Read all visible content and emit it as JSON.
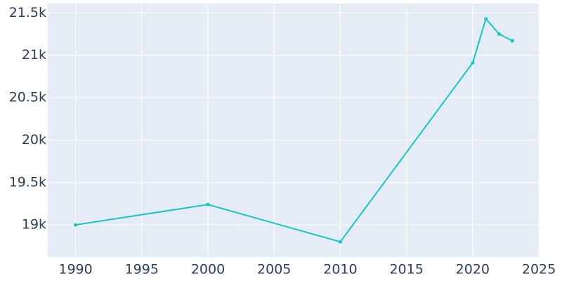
{
  "chart_data": {
    "type": "line",
    "x": [
      1990,
      2000,
      2010,
      2020,
      2021,
      2022,
      2023
    ],
    "series": [
      {
        "color": "#13c7c9",
        "values": [
          19000,
          19240,
          18800,
          20910,
          21430,
          21250,
          21170
        ]
      }
    ],
    "xlim": [
      1987.9,
      2025.05
    ],
    "xticks": [
      1990,
      1995,
      2000,
      2005,
      2010,
      2015,
      2020,
      2025
    ],
    "ylim": [
      18620,
      21610
    ],
    "yticks": [
      {
        "value": 19000,
        "label": "19k"
      },
      {
        "value": 19500,
        "label": "19.5k"
      },
      {
        "value": 20000,
        "label": "20k"
      },
      {
        "value": 20500,
        "label": "20.5k"
      },
      {
        "value": 21000,
        "label": "21k"
      },
      {
        "value": 21500,
        "label": "21.5k"
      }
    ],
    "grid": true
  }
}
